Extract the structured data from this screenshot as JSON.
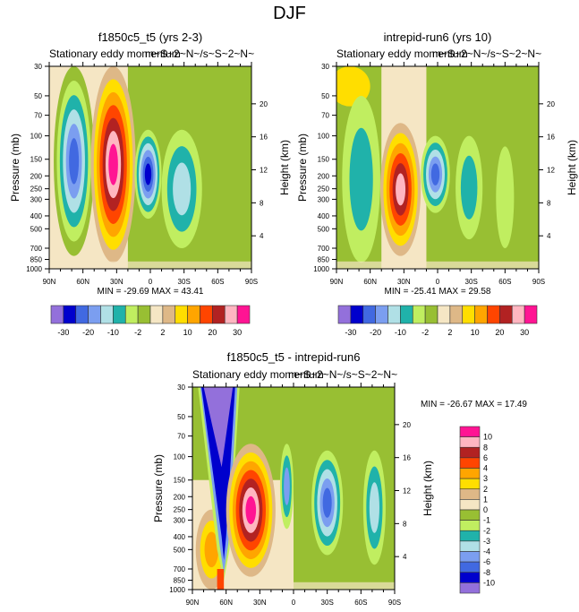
{
  "figure": {
    "title": "DJF"
  },
  "palette": {
    "colors": [
      "#9370db",
      "#0000cd",
      "#4169e1",
      "#7b9ef0",
      "#b0e0e6",
      "#20b2aa",
      "#c0ee60",
      "#98bf33",
      "#f5e6c4",
      "#deb887",
      "#ffde00",
      "#ffa500",
      "#ff4500",
      "#b22222",
      "#ffb6c1",
      "#ff1493"
    ]
  },
  "chart_data": [
    {
      "type": "heatmap",
      "title": "f1850c5_t5 (yrs 2-3)",
      "left_string": "Stationary eddy momentum",
      "right_string": "m~S~2~N~/s~S~2~N~",
      "xlabel": "",
      "ylabel": "Pressure (mb)",
      "y2label": "Height (km)",
      "x_ticks": [
        "90N",
        "60N",
        "30N",
        "0",
        "30S",
        "60S",
        "90S"
      ],
      "y_ticks": [
        "30",
        "50",
        "70",
        "100",
        "150",
        "200",
        "250",
        "300",
        "400",
        "500",
        "700",
        "850",
        "1000"
      ],
      "y2_ticks": [
        "20",
        "16",
        "12",
        "8",
        "4"
      ],
      "stats": "MIN = -29.69  MAX =  43.41",
      "min": -29.69,
      "max": 43.41,
      "colorbar": {
        "orientation": "horizontal",
        "labels": [
          "-30",
          "-20",
          "-10",
          "-2",
          "2",
          "10",
          "20",
          "30"
        ],
        "levels": [
          -30,
          -25,
          -20,
          -15,
          -10,
          -5,
          -2,
          0,
          2,
          5,
          10,
          15,
          20,
          25,
          30
        ]
      }
    },
    {
      "type": "heatmap",
      "title": "intrepid-run6 (yrs 10)",
      "left_string": "Stationary eddy momentum",
      "right_string": "m~S~2~N~/s~S~2~N~",
      "xlabel": "",
      "ylabel": "Pressure (mb)",
      "y2label": "Height (km)",
      "x_ticks": [
        "90N",
        "60N",
        "30N",
        "0",
        "30S",
        "60S",
        "90S"
      ],
      "y_ticks": [
        "30",
        "50",
        "70",
        "100",
        "150",
        "200",
        "250",
        "300",
        "400",
        "500",
        "700",
        "850",
        "1000"
      ],
      "y2_ticks": [
        "20",
        "16",
        "12",
        "8",
        "4"
      ],
      "stats": "MIN = -25.41  MAX =  29.58",
      "min": -25.41,
      "max": 29.58,
      "colorbar": {
        "orientation": "horizontal",
        "labels": [
          "-30",
          "-20",
          "-10",
          "-2",
          "2",
          "10",
          "20",
          "30"
        ],
        "levels": [
          -30,
          -25,
          -20,
          -15,
          -10,
          -5,
          -2,
          0,
          2,
          5,
          10,
          15,
          20,
          25,
          30
        ]
      }
    },
    {
      "type": "heatmap",
      "title": "f1850c5_t5 - intrepid-run6",
      "left_string": "Stationary eddy momentum",
      "right_string": "m~S~2~N~/s~S~2~N~",
      "xlabel": "",
      "ylabel": "Pressure (mb)",
      "y2label": "Height (km)",
      "x_ticks": [
        "90N",
        "60N",
        "30N",
        "0",
        "30S",
        "60S",
        "90S"
      ],
      "y_ticks": [
        "30",
        "50",
        "70",
        "100",
        "150",
        "200",
        "250",
        "300",
        "400",
        "500",
        "700",
        "850",
        "1000"
      ],
      "y2_ticks": [
        "20",
        "16",
        "12",
        "8",
        "4"
      ],
      "stats": "MIN = -26.67  MAX =  17.49",
      "min": -26.67,
      "max": 17.49,
      "colorbar": {
        "orientation": "vertical",
        "labels": [
          "10",
          "8",
          "6",
          "4",
          "3",
          "2",
          "1",
          "0",
          "-1",
          "-2",
          "-3",
          "-4",
          "-6",
          "-8",
          "-10"
        ],
        "levels": [
          -10,
          -8,
          -6,
          -4,
          -3,
          -2,
          -1,
          0,
          1,
          2,
          3,
          4,
          6,
          8,
          10
        ]
      }
    }
  ]
}
